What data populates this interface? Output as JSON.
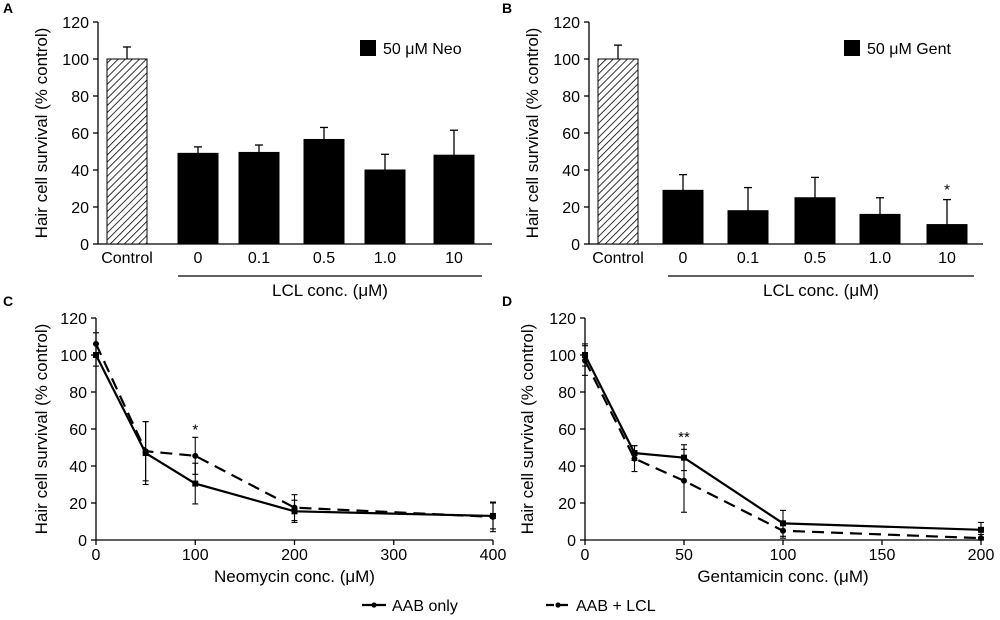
{
  "chart_data": [
    {
      "panel": "A",
      "type": "bar",
      "ylabel": "Hair cell survival (% control)",
      "xlabel": "LCL conc. (μM)",
      "ylim": [
        0,
        120
      ],
      "yticks": [
        0,
        20,
        40,
        60,
        80,
        100,
        120
      ],
      "categories": [
        "Control",
        "0",
        "0.1",
        "0.5",
        "1.0",
        "10"
      ],
      "values": [
        100,
        49,
        49.5,
        56.5,
        40,
        48
      ],
      "errors": [
        6.5,
        3.5,
        4,
        6.5,
        8.5,
        13.5
      ],
      "bar_styles": [
        "hatched",
        "solid",
        "solid",
        "solid",
        "solid",
        "solid"
      ],
      "legend": "50 μM Neo",
      "annotations": []
    },
    {
      "panel": "B",
      "type": "bar",
      "ylabel": "Hair cell survival (% control)",
      "xlabel": "LCL conc. (μM)",
      "ylim": [
        0,
        120
      ],
      "yticks": [
        0,
        20,
        40,
        60,
        80,
        100,
        120
      ],
      "categories": [
        "Control",
        "0",
        "0.1",
        "0.5",
        "1.0",
        "10"
      ],
      "values": [
        100,
        29,
        18,
        25,
        16,
        10.5
      ],
      "errors": [
        7.5,
        8.5,
        12.5,
        11,
        9,
        13.5
      ],
      "bar_styles": [
        "hatched",
        "solid",
        "solid",
        "solid",
        "solid",
        "solid"
      ],
      "legend": "50 μM Gent",
      "annotations": [
        {
          "index": 5,
          "text": "*"
        }
      ]
    },
    {
      "panel": "C",
      "type": "line",
      "ylabel": "Hair cell survival (% control)",
      "xlabel": "Neomycin conc. (μM)",
      "xlim": [
        0,
        400
      ],
      "xticks": [
        0,
        100,
        200,
        300,
        400
      ],
      "ylim": [
        0,
        120
      ],
      "yticks": [
        0,
        20,
        40,
        60,
        80,
        100,
        120
      ],
      "series": [
        {
          "name": "AAB only",
          "style": "solid",
          "x": [
            0,
            50,
            100,
            200,
            400
          ],
          "values": [
            100,
            47,
            30.5,
            15.5,
            13
          ],
          "errors": [
            6,
            17,
            11,
            6,
            7
          ]
        },
        {
          "name": "AAB + LCL",
          "style": "dashed",
          "x": [
            0,
            50,
            100,
            200,
            400
          ],
          "values": [
            106,
            48,
            45.5,
            17.5,
            12.5
          ],
          "errors": [
            6,
            16,
            10,
            7,
            8
          ]
        }
      ],
      "annotations": [
        {
          "x": 100,
          "y": 57,
          "text": "*"
        }
      ]
    },
    {
      "panel": "D",
      "type": "line",
      "ylabel": "Hair cell survival (% control)",
      "xlabel": "Gentamicin conc. (μM)",
      "xlim": [
        0,
        200
      ],
      "xticks": [
        0,
        50,
        100,
        150,
        200
      ],
      "ylim": [
        0,
        120
      ],
      "yticks": [
        0,
        20,
        40,
        60,
        80,
        100,
        120
      ],
      "series": [
        {
          "name": "AAB only",
          "style": "solid",
          "x": [
            0,
            25,
            50,
            100,
            200
          ],
          "values": [
            100,
            47,
            44.5,
            9,
            5.5
          ],
          "errors": [
            6,
            4,
            7,
            7,
            4
          ]
        },
        {
          "name": "AAB + LCL",
          "style": "dashed",
          "x": [
            0,
            25,
            50,
            100,
            200
          ],
          "values": [
            97,
            44,
            32,
            5,
            1
          ],
          "errors": [
            8,
            7,
            17,
            4,
            2
          ]
        }
      ],
      "annotations": [
        {
          "x": 50,
          "y": 53,
          "text": "**"
        }
      ]
    }
  ],
  "legend": {
    "items": [
      {
        "label": "AAB only",
        "style": "solid"
      },
      {
        "label": "AAB + LCL",
        "style": "dashed"
      }
    ]
  }
}
